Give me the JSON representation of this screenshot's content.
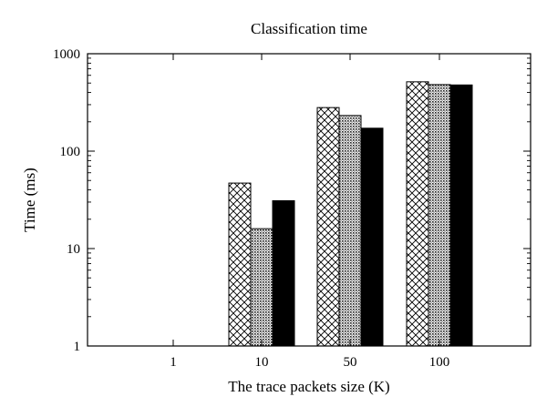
{
  "chart_data": {
    "type": "bar",
    "title": "Classification time",
    "xlabel": "The trace packets size (K)",
    "ylabel": "Time (ms)",
    "yscale": "log",
    "ylim": [
      1,
      1000
    ],
    "yticks": [
      "1",
      "10",
      "100",
      "1000"
    ],
    "categories": [
      "1",
      "10",
      "50",
      "100"
    ],
    "grid": false,
    "legend": "none",
    "series": [
      {
        "pattern": "crosshatch",
        "values": [
          null,
          47,
          280,
          515
        ]
      },
      {
        "pattern": "dense-dotted",
        "values": [
          null,
          16,
          232,
          482
        ]
      },
      {
        "pattern": "solid",
        "color": "#000000",
        "values": [
          null,
          31,
          172,
          478
        ]
      }
    ]
  }
}
